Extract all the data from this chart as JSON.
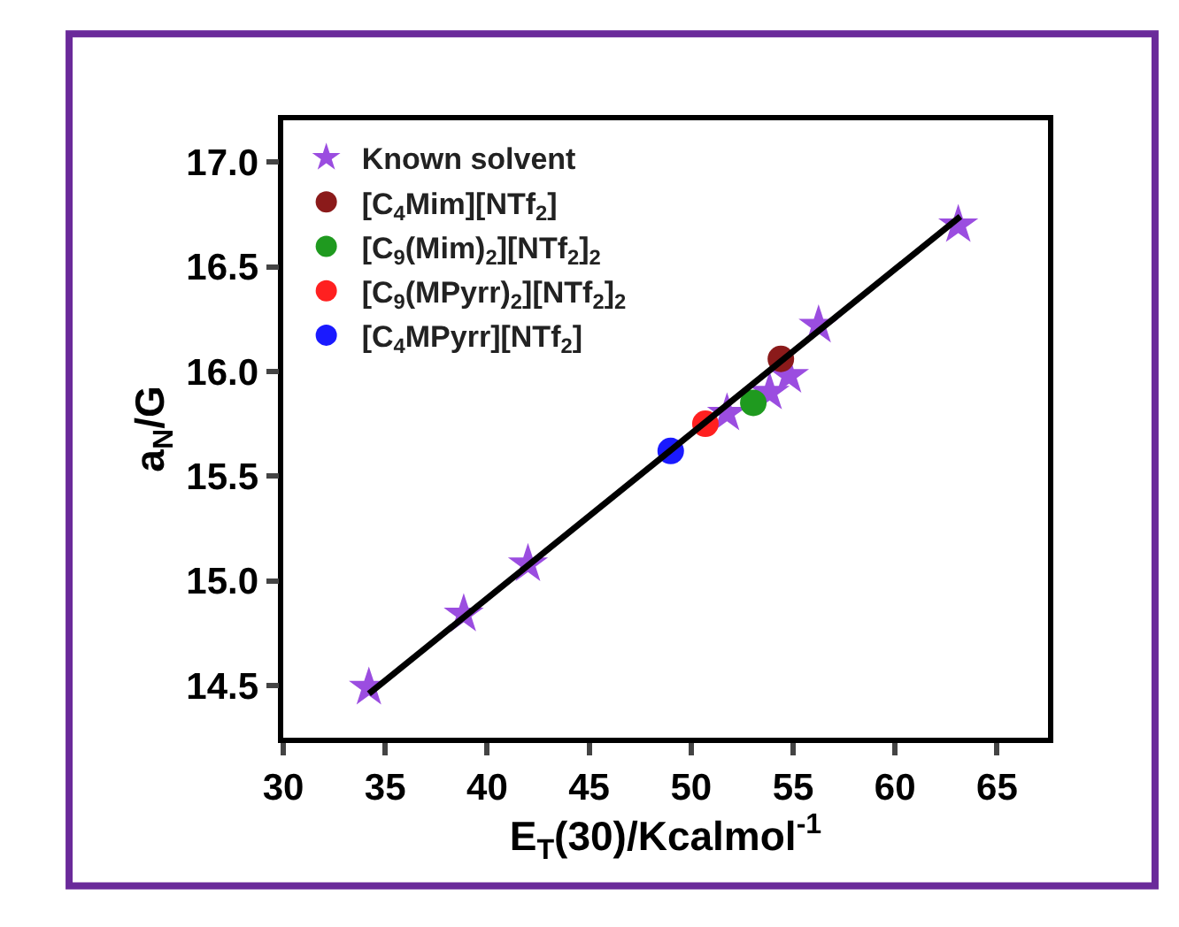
{
  "chart_data": {
    "type": "scatter",
    "xlabel": "E$_{T}$(30)/Kcalmol$^{-1}$",
    "ylabel": "a$_{N}$/G",
    "xlim": [
      30,
      67.5
    ],
    "xticks": [
      30,
      35,
      40,
      45,
      50,
      55,
      60,
      65
    ],
    "ylim": [
      14.25,
      17.2
    ],
    "yticks": [
      14.5,
      {
        "value": 15,
        "label": "15.0"
      },
      15.5,
      {
        "value": 16,
        "label": "16.0"
      },
      16.5,
      {
        "value": 17,
        "label": "17.0"
      }
    ],
    "legend": "top left",
    "series": [
      {
        "name": "Known solvent",
        "color": "#9b4de0",
        "marker": "star",
        "x": [
          34.2,
          38.85,
          42.0,
          51.76,
          53.85,
          54.8,
          56.25,
          63.1
        ],
        "values": [
          14.49,
          14.84,
          15.08,
          15.8,
          15.9,
          15.98,
          16.22,
          16.7
        ]
      },
      {
        "name": "[C$_{4}$Mim][NTf$_{2}$]",
        "color": "#8b1a1a",
        "marker": "circle",
        "x": [
          54.4
        ],
        "values": [
          16.06
        ]
      },
      {
        "name": "[C$_{9}$(Mim)$_{2}$][NTf$_{2}$]$_{2}$",
        "color": "#1f9a1f",
        "marker": "circle",
        "x": [
          53.05
        ],
        "values": [
          15.85
        ]
      },
      {
        "name": "[C$_{9}$(MPyrr)$_{2}$][NTf$_{2}$]$_{2}$",
        "color": "#ff2020",
        "marker": "circle",
        "x": [
          50.7
        ],
        "values": [
          15.75
        ]
      },
      {
        "name": "[C$_{4}$MPyrr][NTf$_{2}$]",
        "color": "#1a1aff",
        "marker": "circle",
        "x": [
          49.0
        ],
        "values": [
          15.62
        ]
      },
      {
        "type": "line",
        "color": "#000000",
        "marker": "none",
        "line_style": "solid",
        "x": [
          34.2,
          63.2
        ],
        "values": [
          14.46,
          16.74
        ]
      }
    ]
  }
}
